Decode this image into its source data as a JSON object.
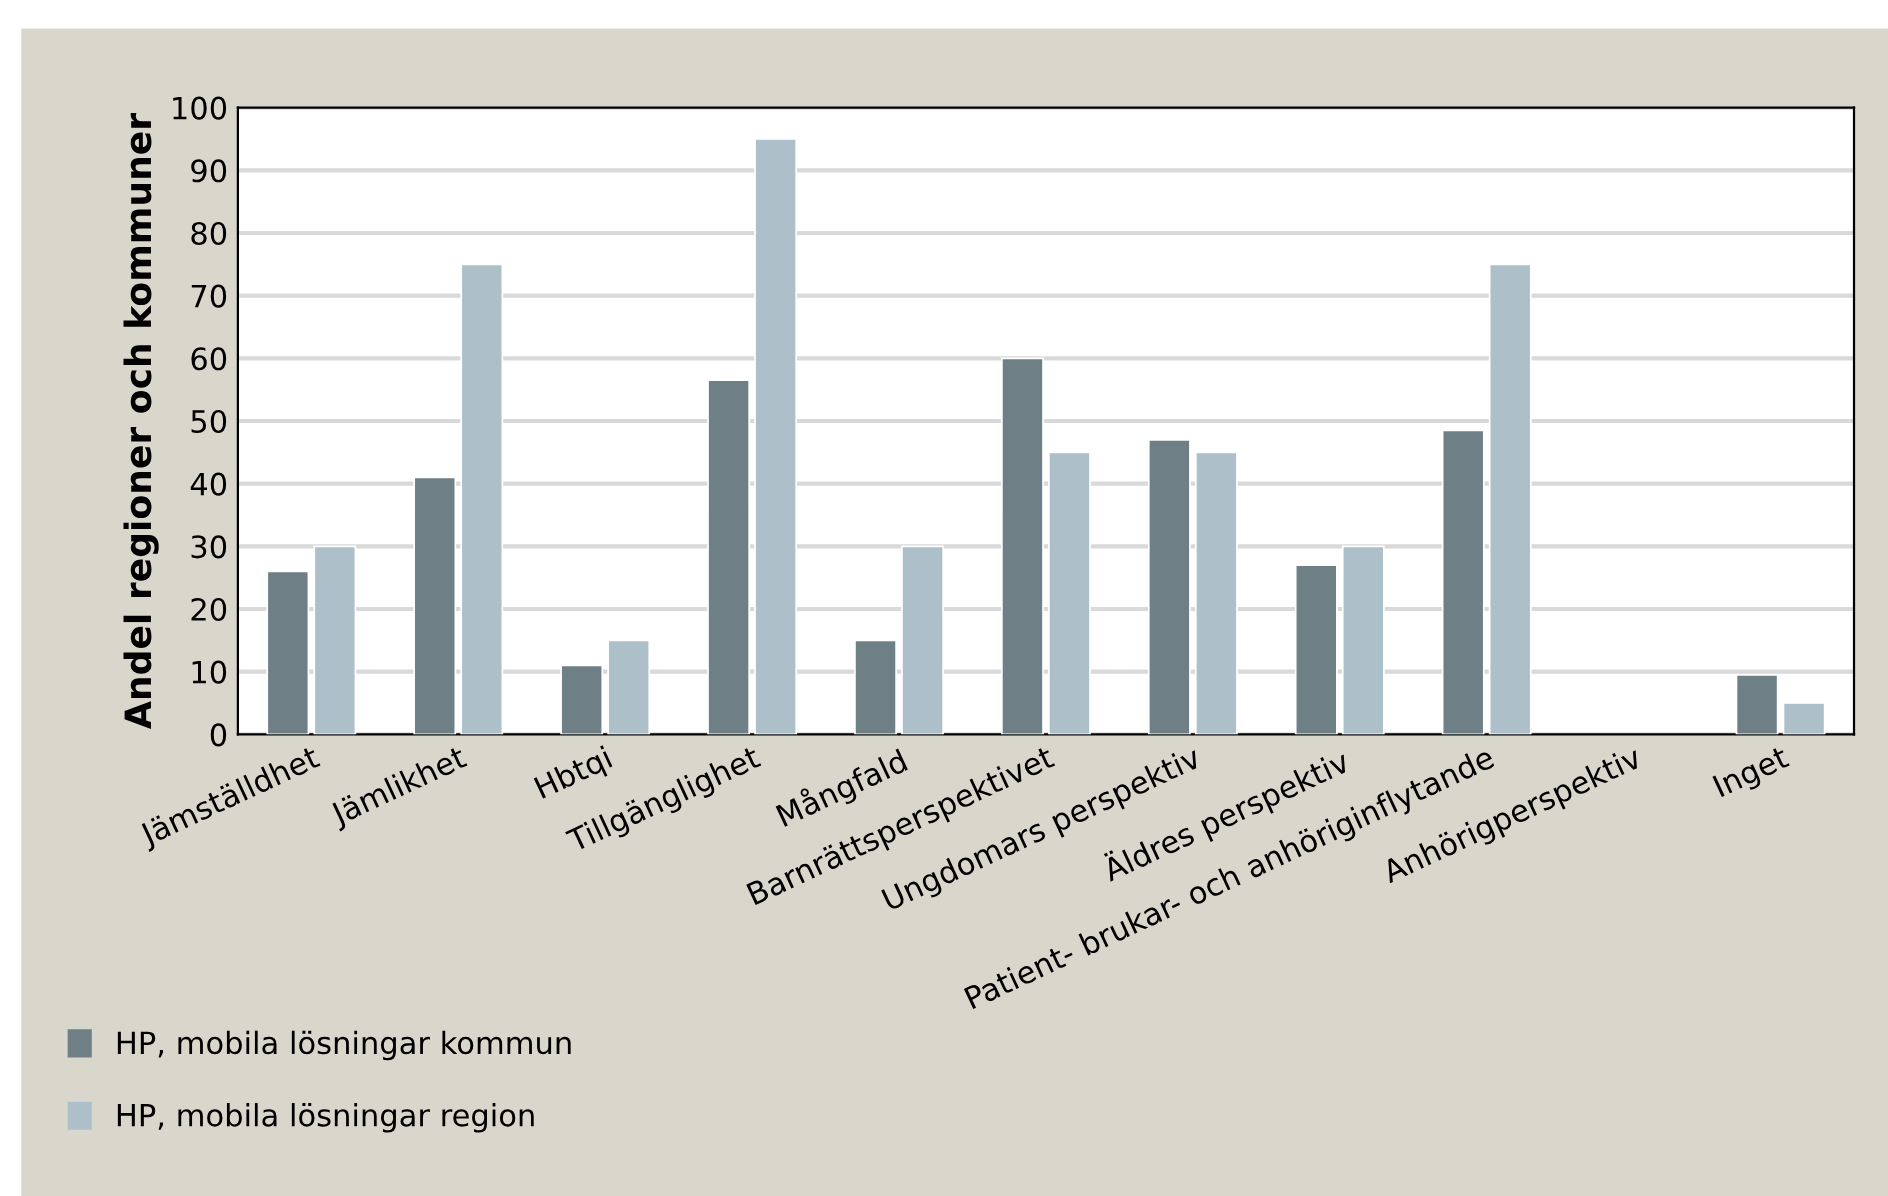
{
  "chart_data": {
    "type": "bar",
    "ylabel": "Andel regioner och kommuner",
    "categories": [
      "Jämställdhet",
      "Jämlikhet",
      "Hbtqi",
      "Tillgänglighet",
      "Mångfald",
      "Barnrättsperspektivet",
      "Ungdomars perspektiv",
      "Äldres perspektiv",
      "Patient- brukar- och anhöriginflytande",
      "Anhörigperspektiv",
      "Inget"
    ],
    "series": [
      {
        "name": "HP, mobila lösningar kommun",
        "color": "#6f7f86",
        "values": [
          26,
          41,
          11,
          56.5,
          15,
          60,
          47,
          27,
          48.5,
          null,
          9.5
        ]
      },
      {
        "name": "HP, mobila lösningar region",
        "color": "#adc0c9",
        "values": [
          30,
          75,
          15,
          95,
          30,
          45,
          45,
          30,
          75,
          null,
          5
        ]
      }
    ],
    "ylim": [
      0,
      100
    ],
    "yticks": [
      0,
      10,
      20,
      30,
      40,
      50,
      60,
      70,
      80,
      90,
      100
    ],
    "grid": "y",
    "legend": "bottom left"
  }
}
